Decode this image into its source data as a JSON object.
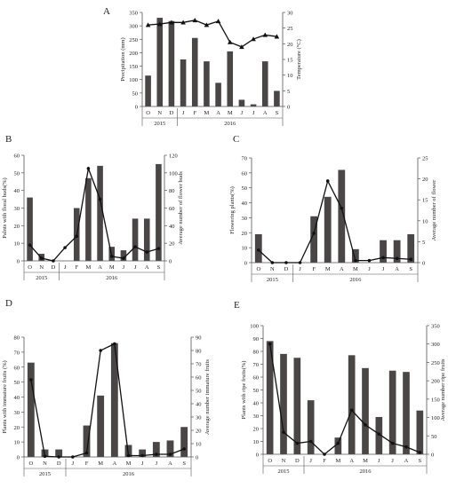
{
  "chart_data": [
    {
      "panel": "A",
      "type": "bar+line",
      "categories": [
        "O",
        "N",
        "D",
        "J",
        "F",
        "M",
        "A",
        "M",
        "J",
        "J",
        "A",
        "S"
      ],
      "years": [
        "2015",
        "2016"
      ],
      "ylabel": "Precipitation (mm)",
      "y2label": "Temperature (°C)",
      "ylim": [
        0,
        350
      ],
      "yticks": [
        0,
        50,
        100,
        150,
        200,
        250,
        300,
        350
      ],
      "y2lim": [
        0,
        30
      ],
      "y2ticks": [
        0,
        5,
        10,
        15,
        20,
        25,
        30
      ],
      "bar_values": [
        115,
        330,
        318,
        175,
        255,
        168,
        88,
        205,
        25,
        8,
        168,
        58
      ],
      "line_values": [
        26,
        26.3,
        26.8,
        26.8,
        27.5,
        26,
        27.2,
        20.5,
        19,
        21.5,
        22.8,
        22.3
      ],
      "marker": "triangle"
    },
    {
      "panel": "B",
      "type": "bar+line",
      "categories": [
        "O",
        "N",
        "D",
        "J",
        "F",
        "M",
        "A",
        "M",
        "J",
        "J",
        "A",
        "S"
      ],
      "years": [
        "2015",
        "2016"
      ],
      "ylabel": "Palnts with floral buds(%)",
      "y2label": "Average number of flower buds",
      "ylim": [
        0,
        60
      ],
      "yticks": [
        0,
        10,
        20,
        30,
        40,
        50,
        60
      ],
      "y2lim": [
        0,
        120
      ],
      "y2ticks": [
        0,
        20,
        40,
        60,
        80,
        100,
        120
      ],
      "bar_values": [
        36,
        4,
        0,
        0,
        30,
        47,
        54,
        8,
        6,
        24,
        24,
        55
      ],
      "line_values": [
        18,
        3,
        0,
        15,
        28,
        105,
        70,
        5,
        3,
        16,
        10,
        14
      ],
      "marker": "circle"
    },
    {
      "panel": "C",
      "type": "bar+line",
      "categories": [
        "O",
        "N",
        "D",
        "J",
        "F",
        "M",
        "A",
        "M",
        "J",
        "J",
        "A",
        "S"
      ],
      "years": [
        "2015",
        "2016"
      ],
      "ylabel": "Flowering plants(%)",
      "y2label": "Average number of flower",
      "ylim": [
        0,
        70
      ],
      "yticks": [
        0,
        10,
        20,
        30,
        40,
        50,
        60,
        70
      ],
      "y2lim": [
        0,
        25
      ],
      "y2ticks": [
        0,
        5,
        10,
        15,
        20,
        25
      ],
      "bar_values": [
        19,
        0,
        0,
        0,
        31,
        44,
        62,
        9,
        0,
        15,
        15,
        19
      ],
      "line_values": [
        3,
        0,
        0,
        0,
        7,
        19.5,
        13,
        0.5,
        0.5,
        1.2,
        1,
        0.8
      ],
      "marker": "circle"
    },
    {
      "panel": "D",
      "type": "bar+line",
      "categories": [
        "O",
        "N",
        "D",
        "J",
        "F",
        "M",
        "A",
        "M",
        "J",
        "J",
        "A",
        "S"
      ],
      "years": [
        "2015",
        "2016"
      ],
      "ylabel": "Plants with immature fruits (%)",
      "y2label": "Average number immature fruits",
      "ylim": [
        0,
        80
      ],
      "yticks": [
        0,
        10,
        20,
        30,
        40,
        50,
        60,
        70,
        80
      ],
      "y2lim": [
        0,
        90
      ],
      "y2ticks": [
        0,
        10,
        20,
        30,
        40,
        50,
        60,
        70,
        80,
        90
      ],
      "bar_values": [
        63,
        5,
        5,
        0,
        21,
        41,
        76,
        8,
        5,
        10,
        11,
        20
      ],
      "line_values": [
        58,
        0.5,
        0,
        0,
        3,
        80,
        85,
        1,
        1,
        2,
        2,
        6
      ],
      "marker": "circle"
    },
    {
      "panel": "E",
      "type": "bar+line",
      "categories": [
        "O",
        "N",
        "D",
        "J",
        "F",
        "M",
        "A",
        "M",
        "J",
        "J",
        "A",
        "S"
      ],
      "years": [
        "2015",
        "2016"
      ],
      "ylabel": "Plants with ripe fruits(%)",
      "y2label": "Average number ripe fruits",
      "ylim": [
        0,
        100
      ],
      "yticks": [
        0,
        10,
        20,
        30,
        40,
        50,
        60,
        70,
        80,
        90,
        100
      ],
      "y2lim": [
        0,
        350
      ],
      "y2ticks": [
        0,
        50,
        100,
        150,
        200,
        250,
        300,
        350
      ],
      "bar_values": [
        88,
        78,
        75,
        42,
        0,
        13,
        77,
        67,
        29,
        65,
        64,
        34
      ],
      "line_values": [
        300,
        60,
        30,
        35,
        0,
        30,
        120,
        80,
        55,
        30,
        20,
        5
      ],
      "marker": "circle"
    }
  ]
}
